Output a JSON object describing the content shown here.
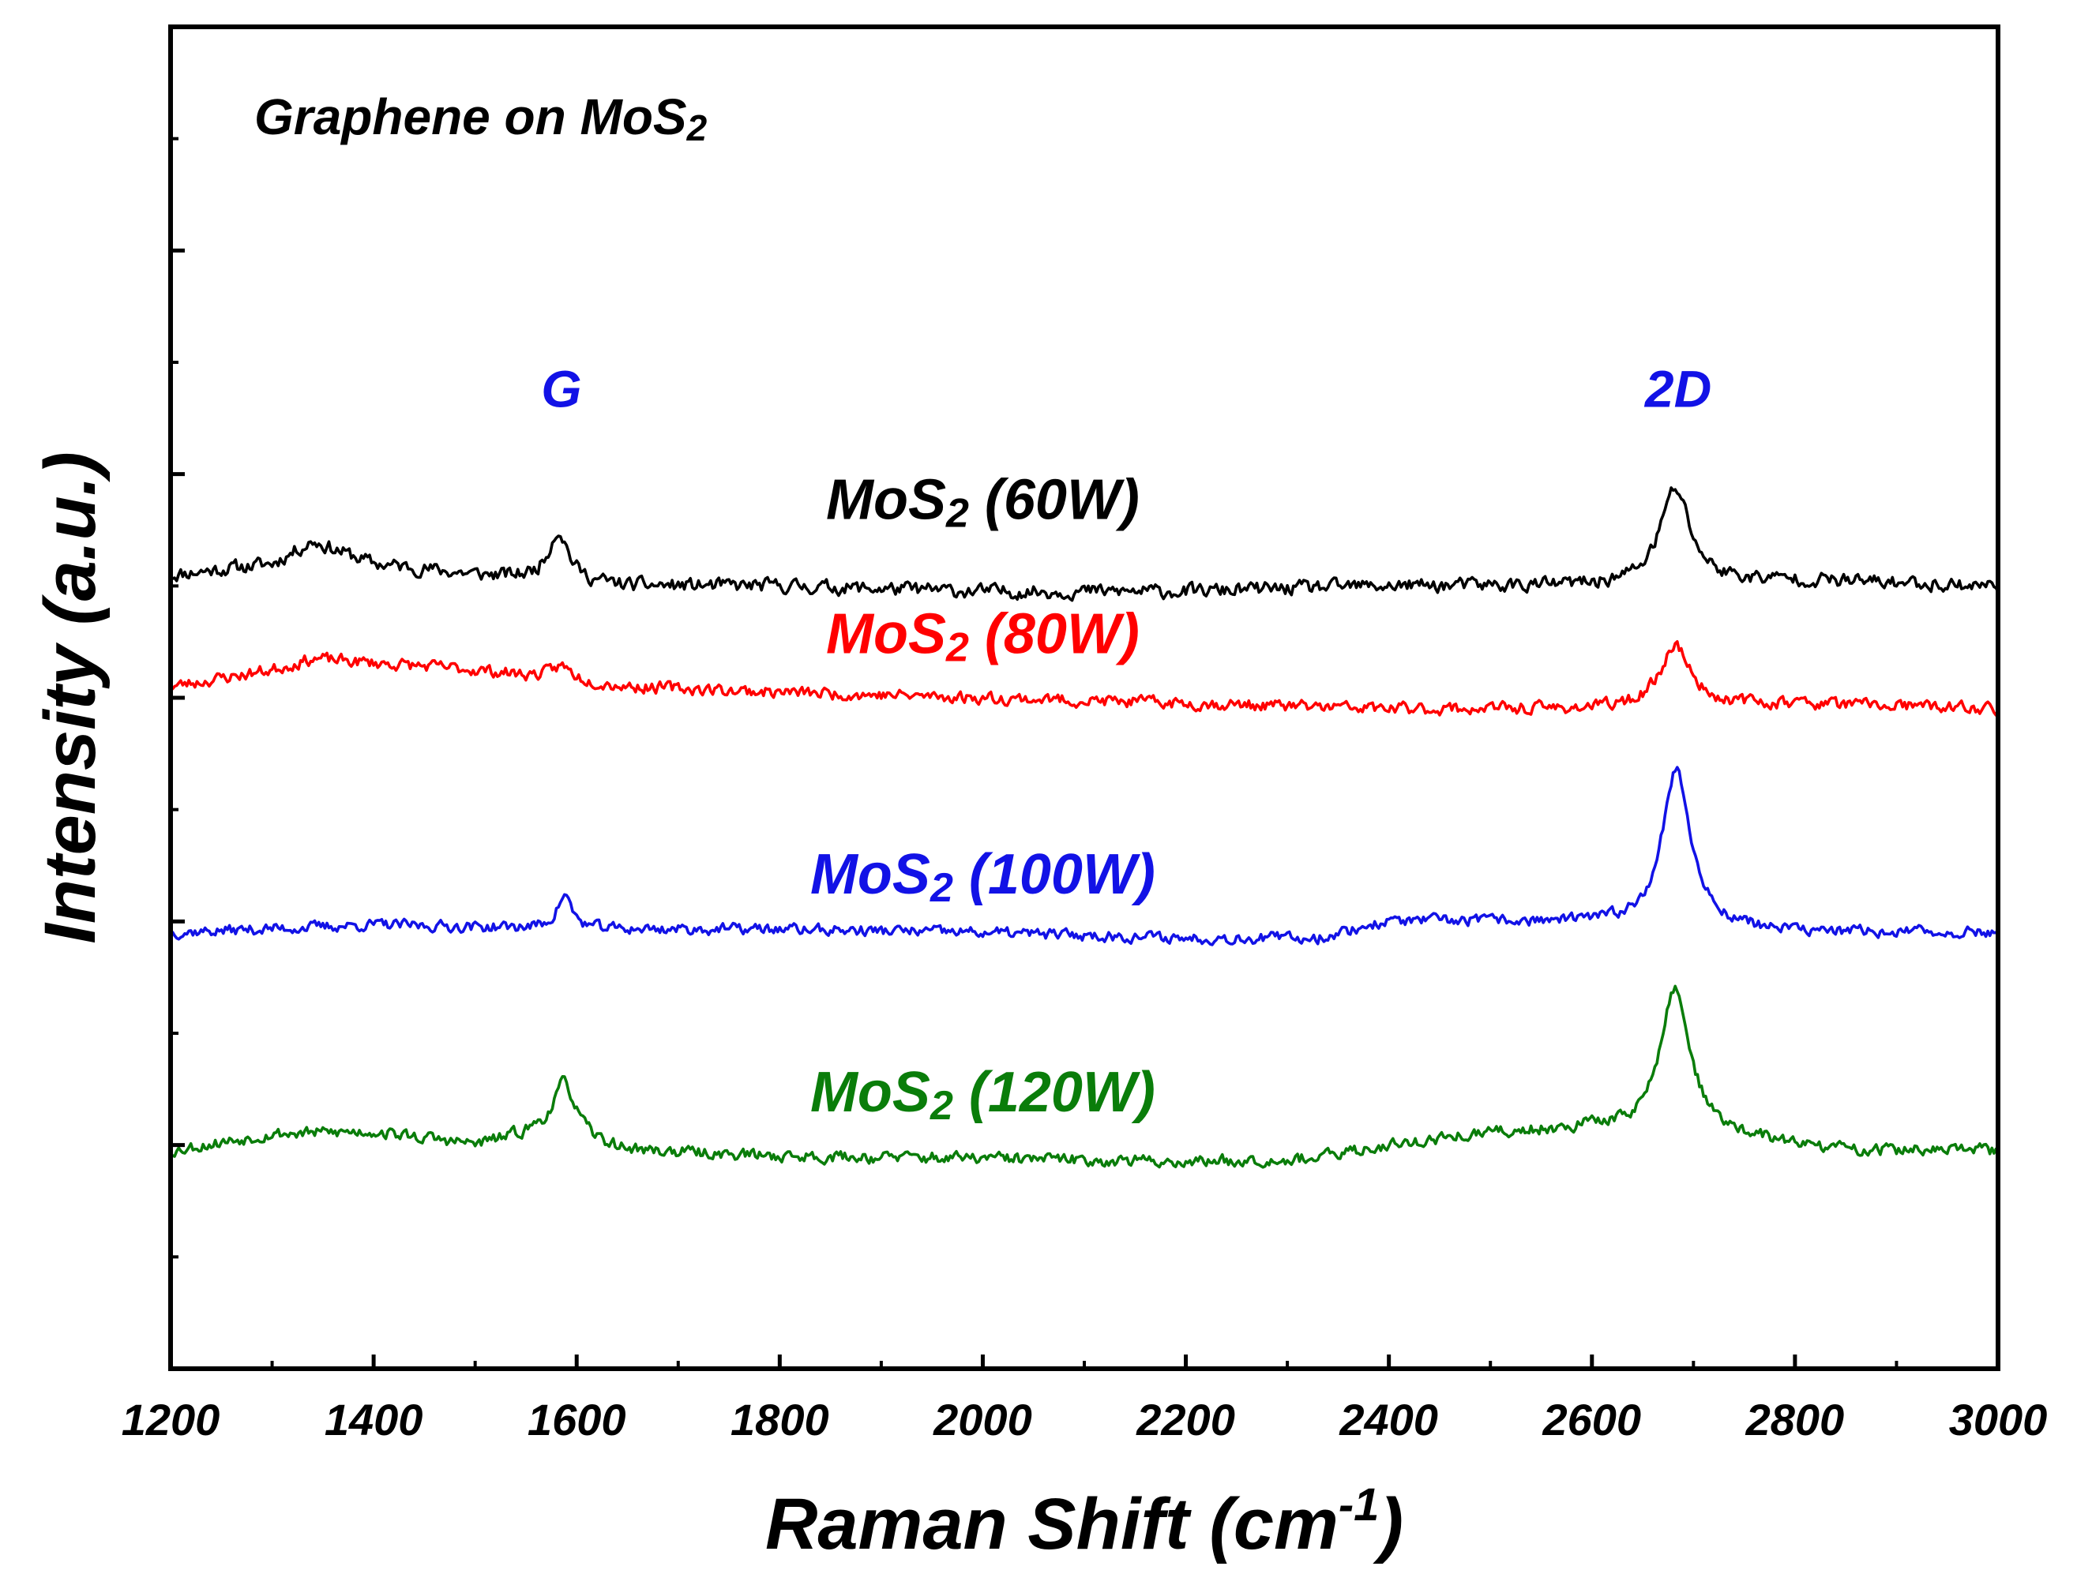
{
  "chart_data": {
    "type": "line",
    "title": "Graphene on MoS",
    "title_sub": "2",
    "xlabel": "Raman Shift (cm",
    "xlabel_sup": "-1",
    "xlabel_end": ")",
    "ylabel": "Intensity (a.u.)",
    "xlim": [
      1200,
      3000
    ],
    "ylim": [
      0,
      12
    ],
    "x_ticks": [
      1200,
      1400,
      1600,
      1800,
      2000,
      2200,
      2400,
      2600,
      2800,
      3000
    ],
    "x_tick_labels": [
      "1200",
      "1400",
      "1600",
      "1800",
      "2000",
      "2200",
      "2400",
      "2600",
      "2800",
      "3000"
    ],
    "y_ticks": [
      1,
      2,
      3,
      4,
      5,
      6,
      7,
      8,
      9,
      10,
      11
    ],
    "grid": false,
    "peak_labels": [
      {
        "text": "G",
        "x": 1585,
        "y": 8.6,
        "color": "#1212e6"
      },
      {
        "text": "2D",
        "x": 2685,
        "y": 8.6,
        "color": "#1212e6"
      }
    ],
    "series": [
      {
        "name": "MoS2 (60W)",
        "label_main": "MoS",
        "label_sub": "2",
        "label_rest": " (60W)",
        "color": "#000000",
        "label_x": 2000,
        "label_y": 7.6,
        "baseline": [
          [
            1200,
            7.1
          ],
          [
            1300,
            7.2
          ],
          [
            1340,
            7.4
          ],
          [
            1400,
            7.2
          ],
          [
            1500,
            7.1
          ],
          [
            1650,
            7.0
          ],
          [
            1800,
            7.0
          ],
          [
            2000,
            6.95
          ],
          [
            2200,
            6.95
          ],
          [
            2400,
            7.0
          ],
          [
            2600,
            7.0
          ],
          [
            2800,
            7.05
          ],
          [
            3000,
            7.0
          ]
        ],
        "peaks": [
          {
            "center": 1582,
            "height": 0.45,
            "width": 12
          },
          {
            "center": 2682,
            "height": 0.85,
            "width": 18
          }
        ],
        "noise": 0.07,
        "seed": 11
      },
      {
        "name": "MoS2 (80W)",
        "label_main": "MoS",
        "label_sub": "2",
        "label_rest": " (80W)",
        "color": "#ff0000",
        "label_x": 2000,
        "label_y": 6.4,
        "baseline": [
          [
            1200,
            6.1
          ],
          [
            1300,
            6.25
          ],
          [
            1340,
            6.35
          ],
          [
            1500,
            6.25
          ],
          [
            1650,
            6.1
          ],
          [
            1800,
            6.05
          ],
          [
            2000,
            6.0
          ],
          [
            2200,
            5.95
          ],
          [
            2400,
            5.9
          ],
          [
            2600,
            5.9
          ],
          [
            2800,
            5.95
          ],
          [
            3000,
            5.9
          ]
        ],
        "peaks": [
          {
            "center": 1585,
            "height": 0.12,
            "width": 12
          },
          {
            "center": 2682,
            "height": 0.55,
            "width": 18
          }
        ],
        "noise": 0.06,
        "seed": 23
      },
      {
        "name": "MoS2 (100W)",
        "label_main": "MoS",
        "label_sub": "2",
        "label_rest": " (100W)",
        "color": "#1212e6",
        "label_x": 2000,
        "label_y": 4.25,
        "baseline": [
          [
            1200,
            3.9
          ],
          [
            1400,
            3.97
          ],
          [
            1600,
            3.93
          ],
          [
            1800,
            3.93
          ],
          [
            2000,
            3.9
          ],
          [
            2200,
            3.85
          ],
          [
            2330,
            3.85
          ],
          [
            2400,
            4.0
          ],
          [
            2500,
            4.0
          ],
          [
            2600,
            3.98
          ],
          [
            2700,
            3.95
          ],
          [
            2800,
            3.9
          ],
          [
            3000,
            3.9
          ]
        ],
        "peaks": [
          {
            "center": 1588,
            "height": 0.3,
            "width": 9
          },
          {
            "center": 2683,
            "height": 1.4,
            "width": 17
          }
        ],
        "noise": 0.055,
        "seed": 37
      },
      {
        "name": "MoS2 (120W)",
        "label_main": "MoS",
        "label_sub": "2",
        "label_rest": " (120W)",
        "color": "#0a7d0a",
        "label_x": 2000,
        "label_y": 2.3,
        "baseline": [
          [
            1200,
            1.95
          ],
          [
            1300,
            2.1
          ],
          [
            1400,
            2.12
          ],
          [
            1500,
            2.0
          ],
          [
            1560,
            2.1
          ],
          [
            1650,
            1.95
          ],
          [
            1800,
            1.9
          ],
          [
            2000,
            1.88
          ],
          [
            2200,
            1.85
          ],
          [
            2330,
            1.88
          ],
          [
            2400,
            2.0
          ],
          [
            2500,
            2.1
          ],
          [
            2600,
            2.15
          ],
          [
            2750,
            2.05
          ],
          [
            2850,
            1.95
          ],
          [
            3000,
            1.95
          ]
        ],
        "peaks": [
          {
            "center": 1588,
            "height": 0.5,
            "width": 14
          },
          {
            "center": 2682,
            "height": 1.3,
            "width": 18
          }
        ],
        "noise": 0.06,
        "seed": 53
      }
    ]
  }
}
